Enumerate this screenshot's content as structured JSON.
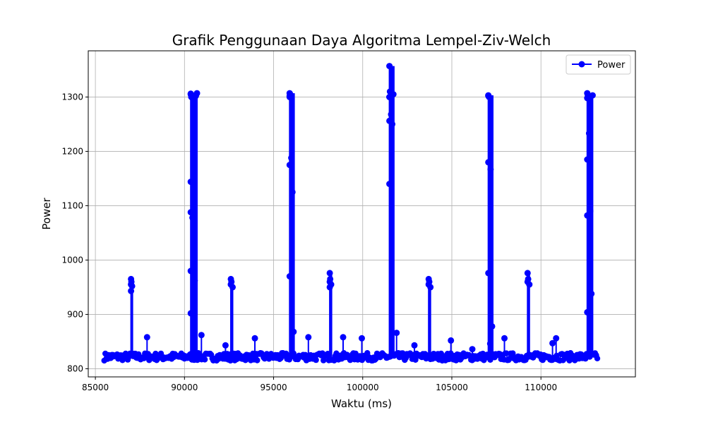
{
  "chart_data": {
    "type": "line",
    "title": "Grafik Penggunaan Daya Algoritma Lempel-Ziv-Welch",
    "xlabel": "Waktu (ms)",
    "ylabel": "Power",
    "xlim": [
      84600,
      115300
    ],
    "ylim": [
      785,
      1385
    ],
    "xticks": [
      85000,
      90000,
      95000,
      100000,
      105000,
      110000
    ],
    "yticks": [
      800,
      900,
      1000,
      1100,
      1200,
      1300
    ],
    "grid": true,
    "legend": {
      "position": "upper-right",
      "label": "Power"
    },
    "series": [
      {
        "name": "Power",
        "color": "#0000ff",
        "marker": "circle",
        "baseline": {
          "x_start": 85500,
          "x_end": 113200,
          "y": 822
        },
        "spikes": [
          {
            "x": 87000,
            "x_end": 87080,
            "y": 965,
            "points": [
              965,
              960,
              955,
              952,
              943
            ]
          },
          {
            "x": 90350,
            "x_end": 90700,
            "y": 1307,
            "points": [
              1305,
              1300,
              1144,
              1078,
              1088,
              985,
              980,
              962,
              902,
              1302,
              1306,
              1307
            ]
          },
          {
            "x": 92600,
            "x_end": 92700,
            "y": 965,
            "points": [
              965,
              960,
              955,
              950
            ]
          },
          {
            "x": 95900,
            "x_end": 96150,
            "y": 1307,
            "points": [
              1307,
              1305,
              1300,
              1188,
              1175,
              1125,
              970,
              868,
              1302
            ]
          },
          {
            "x": 98150,
            "x_end": 98250,
            "y": 976,
            "points": [
              976,
              965,
              960,
              955,
              950
            ]
          },
          {
            "x": 101500,
            "x_end": 101750,
            "y": 1357,
            "points": [
              1357,
              1310,
              1300,
              1268,
              1256,
              1250,
              1140,
              1305,
              1300
            ]
          },
          {
            "x": 103700,
            "x_end": 103800,
            "y": 965,
            "points": [
              965,
              960,
              955,
              950
            ]
          },
          {
            "x": 107050,
            "x_end": 107300,
            "y": 1303,
            "points": [
              1303,
              1300,
              1180,
              1167,
              976,
              878,
              1302
            ]
          },
          {
            "x": 109250,
            "x_end": 109350,
            "y": 976,
            "points": [
              976,
              965,
              960,
              955
            ]
          },
          {
            "x": 112600,
            "x_end": 112900,
            "y": 1307,
            "points": [
              1307,
              1302,
              1298,
              1233,
              1185,
              1090,
              1082,
              938,
              904,
              1303
            ]
          }
        ],
        "small_peaks": [
          {
            "x": 87900,
            "y": 858
          },
          {
            "x": 90950,
            "y": 862
          },
          {
            "x": 92300,
            "y": 843
          },
          {
            "x": 93950,
            "y": 856
          },
          {
            "x": 96950,
            "y": 858
          },
          {
            "x": 98900,
            "y": 858
          },
          {
            "x": 99950,
            "y": 856
          },
          {
            "x": 101900,
            "y": 866
          },
          {
            "x": 102900,
            "y": 843
          },
          {
            "x": 104950,
            "y": 852
          },
          {
            "x": 106150,
            "y": 836
          },
          {
            "x": 107150,
            "y": 846
          },
          {
            "x": 107950,
            "y": 856
          },
          {
            "x": 110650,
            "y": 847
          },
          {
            "x": 110850,
            "y": 856
          }
        ]
      }
    ]
  }
}
